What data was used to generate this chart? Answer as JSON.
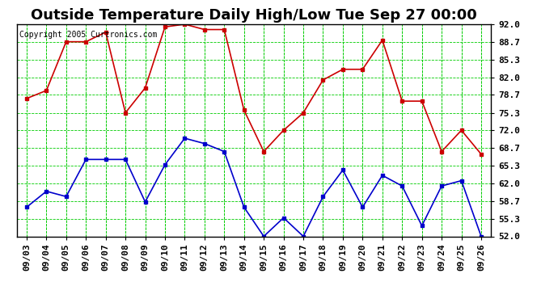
{
  "title": "Outside Temperature Daily High/Low Tue Sep 27 00:00",
  "copyright": "Copyright 2005 Curtronics.com",
  "xlabels": [
    "09/03",
    "09/04",
    "09/05",
    "09/06",
    "09/07",
    "09/08",
    "09/09",
    "09/10",
    "09/11",
    "09/12",
    "09/13",
    "09/14",
    "09/15",
    "09/16",
    "09/17",
    "09/18",
    "09/19",
    "09/20",
    "09/21",
    "09/22",
    "09/23",
    "09/24",
    "09/25",
    "09/26"
  ],
  "high_temps": [
    78.0,
    79.5,
    88.7,
    88.7,
    90.5,
    75.3,
    80.0,
    91.5,
    92.0,
    91.0,
    91.0,
    75.8,
    68.0,
    72.0,
    75.3,
    81.5,
    83.5,
    83.5,
    89.0,
    77.5,
    77.5,
    68.0,
    72.0,
    67.5
  ],
  "low_temps": [
    57.5,
    60.5,
    59.5,
    66.5,
    66.5,
    66.5,
    58.5,
    65.5,
    70.5,
    69.5,
    68.0,
    57.5,
    52.0,
    55.5,
    52.0,
    59.5,
    64.5,
    57.5,
    63.5,
    61.5,
    54.0,
    61.5,
    62.5,
    52.0
  ],
  "high_color": "#cc0000",
  "low_color": "#0000cc",
  "bg_color": "#ffffff",
  "plot_bg_color": "#ffffff",
  "grid_color": "#00cc00",
  "yticks": [
    52.0,
    55.3,
    58.7,
    62.0,
    65.3,
    68.7,
    72.0,
    75.3,
    78.7,
    82.0,
    85.3,
    88.7,
    92.0
  ],
  "ylim": [
    52.0,
    92.0
  ],
  "title_fontsize": 13,
  "copyright_fontsize": 7,
  "tick_fontsize": 8,
  "marker": "s",
  "marker_size": 3,
  "line_width": 1.2
}
